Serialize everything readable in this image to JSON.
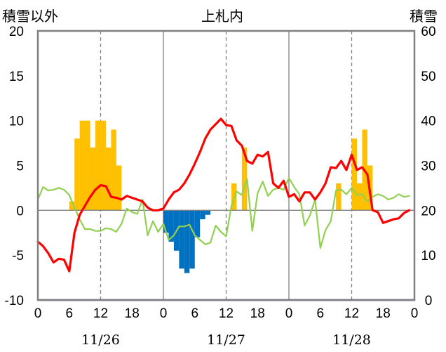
{
  "chart_data": {
    "type": "bar+line",
    "title": "上札内",
    "left_axis_label": "積雪以外",
    "right_axis_label": "積雪",
    "left_ylim": [
      -10,
      20
    ],
    "left_yticks": [
      "20",
      "15",
      "10",
      "5",
      "0",
      "-5",
      "-10"
    ],
    "right_ylim": [
      0,
      60
    ],
    "right_yticks": [
      "60",
      "50",
      "40",
      "30",
      "20",
      "10",
      "0"
    ],
    "x_range_hours": [
      0,
      72
    ],
    "x_tick_labels": [
      "0",
      "6",
      "12",
      "18",
      "0",
      "6",
      "12",
      "18",
      "0",
      "6",
      "12",
      "18",
      "0"
    ],
    "date_labels": [
      "11/26",
      "11/27",
      "11/28"
    ],
    "grid": "vertical dashed at 12:00, solid at day boundaries",
    "colors": {
      "precip_positive": "#FFC000",
      "precip_negative": "#0070C0",
      "red_line": "#FF0000",
      "green_line": "#92D050",
      "purple_line": "#7030A0",
      "axes": "#808080"
    },
    "bars": [
      {
        "h": 6,
        "v": 1
      },
      {
        "h": 7,
        "v": 8
      },
      {
        "h": 8,
        "v": 10
      },
      {
        "h": 9,
        "v": 10
      },
      {
        "h": 10,
        "v": 7
      },
      {
        "h": 11,
        "v": 10
      },
      {
        "h": 12,
        "v": 10
      },
      {
        "h": 13,
        "v": 7
      },
      {
        "h": 14,
        "v": 9
      },
      {
        "h": 15,
        "v": 5
      },
      {
        "h": 24,
        "v": -2.5
      },
      {
        "h": 25,
        "v": -3.5
      },
      {
        "h": 26,
        "v": -4.5
      },
      {
        "h": 27,
        "v": -6.5
      },
      {
        "h": 28,
        "v": -7
      },
      {
        "h": 29,
        "v": -6.5
      },
      {
        "h": 30,
        "v": -3
      },
      {
        "h": 31,
        "v": -1
      },
      {
        "h": 32,
        "v": -0.5
      },
      {
        "h": 37,
        "v": 3
      },
      {
        "h": 39,
        "v": 7
      },
      {
        "h": 57,
        "v": 3
      },
      {
        "h": 60,
        "v": 8
      },
      {
        "h": 61,
        "v": 3
      },
      {
        "h": 62,
        "v": 9
      },
      {
        "h": 63,
        "v": 5
      }
    ],
    "series": [
      {
        "key": "red",
        "x": [
          0,
          1,
          2,
          3,
          4,
          5,
          6,
          7,
          8,
          9,
          10,
          11,
          12,
          13,
          14,
          15,
          16,
          17,
          18,
          19,
          20,
          21,
          22,
          23,
          24,
          25,
          26,
          27,
          28,
          29,
          30,
          31,
          32,
          33,
          34,
          35,
          36,
          37,
          38,
          39,
          40,
          41,
          42,
          43,
          44,
          45,
          46,
          47,
          48,
          49,
          50,
          51,
          52,
          53,
          54,
          55,
          56,
          57,
          58,
          59,
          60,
          61,
          62,
          63,
          64,
          65,
          66,
          67,
          68,
          69,
          70,
          71
        ],
        "y": [
          -3.5,
          -4,
          -4.8,
          -5.8,
          -5.4,
          -5.5,
          -6.8,
          -2.5,
          -0.5,
          0.5,
          1.5,
          2.3,
          2.8,
          2.7,
          1.5,
          1.4,
          1.2,
          1.6,
          1.4,
          1.2,
          1,
          0.3,
          0,
          0,
          0.2,
          1.2,
          2,
          2.3,
          3,
          4,
          5.2,
          6.5,
          8,
          9,
          9.6,
          10.2,
          9.5,
          9.4,
          7.8,
          7.2,
          5.5,
          5.2,
          6.2,
          6,
          6.5,
          3,
          2.5,
          3.3,
          1.5,
          1.8,
          1,
          2,
          2,
          1.2,
          2,
          3,
          4.8,
          4.7,
          5.5,
          4.5,
          6.2,
          4.5,
          4.8,
          4,
          0,
          -0.2,
          -1.4,
          -1.2,
          -1,
          -0.9,
          -0.3,
          0
        ]
      },
      {
        "key": "green",
        "x": [
          0,
          1,
          2,
          3,
          4,
          5,
          6,
          7,
          8,
          9,
          10,
          11,
          12,
          13,
          14,
          15,
          16,
          17,
          18,
          19,
          20,
          21,
          22,
          23,
          24,
          25,
          26,
          27,
          28,
          29,
          30,
          31,
          32,
          33,
          34,
          35,
          36,
          37,
          38,
          39,
          40,
          41,
          42,
          43,
          44,
          45,
          46,
          47,
          48,
          49,
          50,
          51,
          52,
          53,
          54,
          55,
          56,
          57,
          58,
          59,
          60,
          61,
          62,
          63,
          64,
          65,
          66,
          67,
          68,
          69,
          70,
          71
        ],
        "y": [
          1.2,
          2.6,
          2.2,
          2.3,
          2.5,
          2.3,
          1.7,
          0.3,
          -1,
          -2.1,
          -2.1,
          -2.3,
          -2.3,
          -2,
          -2.1,
          -2.4,
          -1.5,
          0.2,
          -0.2,
          -0.4,
          1.2,
          -2.8,
          -1.2,
          -2.4,
          -1.5,
          -3.3,
          -2.8,
          -1.8,
          -1.8,
          -1.6,
          -2.8,
          -3.3,
          -3.8,
          -3.6,
          -1.7,
          -2.4,
          -2.9,
          0.5,
          2.1,
          1.7,
          3.5,
          -2.3,
          1.9,
          3.2,
          1.6,
          2.3,
          2.5,
          2.3,
          3.6,
          2.6,
          1.8,
          -1.7,
          -0.6,
          1.2,
          -4.2,
          -2.2,
          -1.2,
          2.2,
          2.3,
          1.8,
          2.5,
          1.7,
          1.8,
          1,
          1.5,
          1.8,
          1.6,
          1.2,
          1.4,
          1.8,
          1.5,
          1.6
        ]
      },
      {
        "key": "purple",
        "x": [
          0,
          72
        ],
        "y": [
          -10,
          -10
        ]
      }
    ]
  }
}
